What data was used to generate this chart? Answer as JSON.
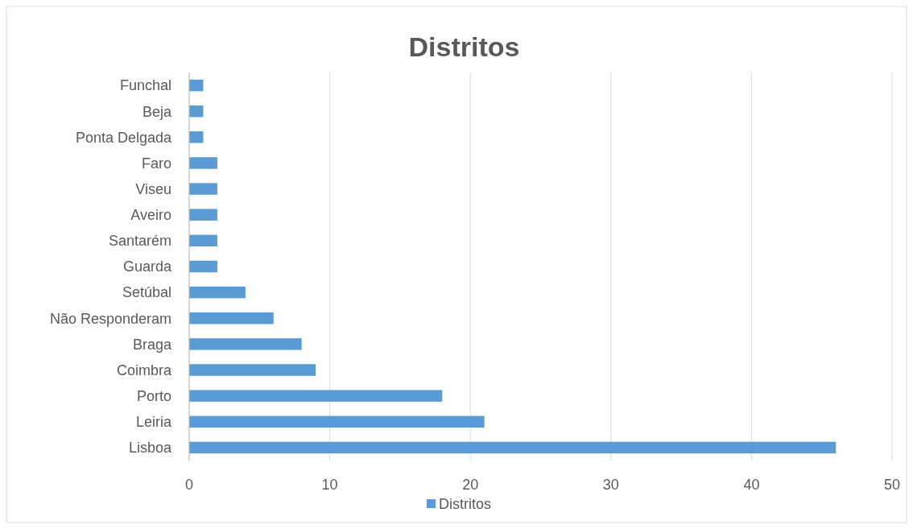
{
  "chart_data": {
    "type": "bar",
    "title": "Distritos",
    "orientation": "horizontal",
    "categories": [
      "Funchal",
      "Beja",
      "Ponta Delgada",
      "Faro",
      "Viseu",
      "Aveiro",
      "Santarém",
      "Guarda",
      "Setúbal",
      "Não Responderam",
      "Braga",
      "Coimbra",
      "Porto",
      "Leiria",
      "Lisboa"
    ],
    "series": [
      {
        "name": "Distritos",
        "color": "#5b9bd5",
        "values": [
          1,
          1,
          1,
          2,
          2,
          2,
          2,
          2,
          4,
          6,
          8,
          9,
          18,
          21,
          46
        ]
      }
    ],
    "xlim": [
      0,
      50
    ],
    "xticks": [
      0,
      10,
      20,
      30,
      40,
      50
    ],
    "grid": "x",
    "legend": "bottom"
  }
}
